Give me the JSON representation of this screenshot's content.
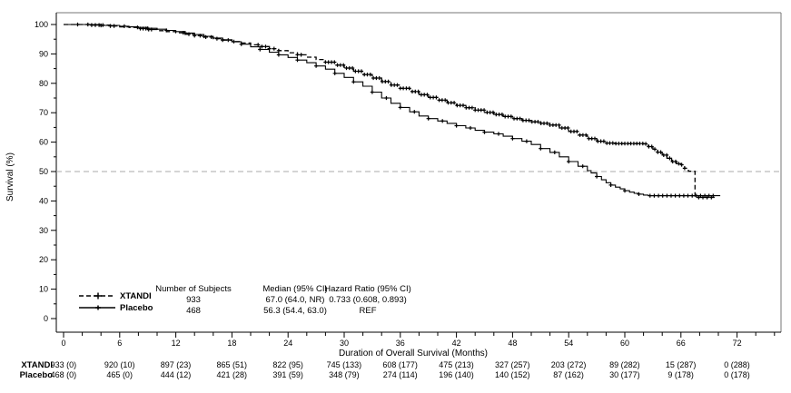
{
  "figure": {
    "bg_color": "#ffffff",
    "axis_color": "#000000",
    "frame_color": "#777777",
    "reference_line_color": "#aaaaaa",
    "series_color": "#000000"
  },
  "chart_data": {
    "type": "line",
    "subtype": "kaplan-meier-step",
    "title": "",
    "xlabel": "Duration of Overall Survival (Months)",
    "ylabel": "Survival (%)",
    "xlim": [
      0,
      76
    ],
    "ylim": [
      0,
      100
    ],
    "xticks_major": [
      0,
      6,
      12,
      18,
      24,
      30,
      36,
      42,
      48,
      54,
      60,
      66,
      72
    ],
    "xtick_minor_step": 2,
    "yticks_major": [
      0,
      10,
      20,
      30,
      40,
      50,
      60,
      70,
      80,
      90,
      100
    ],
    "ytick_minor_step": 5,
    "grid": false,
    "reference_line_y": 50,
    "legend_position": "bottom-left-inside",
    "series": [
      {
        "name": "XTANDI",
        "line_style": "dashed",
        "marker": "plus",
        "points": [
          [
            0,
            100
          ],
          [
            3,
            99.8
          ],
          [
            5,
            99.5
          ],
          [
            6,
            99.2
          ],
          [
            7,
            99.0
          ],
          [
            8,
            98.6
          ],
          [
            9,
            98.3
          ],
          [
            10,
            97.9
          ],
          [
            11,
            97.6
          ],
          [
            12,
            97.2
          ],
          [
            13,
            96.7
          ],
          [
            14,
            96.2
          ],
          [
            15,
            95.7
          ],
          [
            16,
            95.2
          ],
          [
            17,
            94.7
          ],
          [
            18,
            94.2
          ],
          [
            19,
            93.7
          ],
          [
            20,
            93.1
          ],
          [
            21,
            92.5
          ],
          [
            22,
            91.8
          ],
          [
            23,
            91.1
          ],
          [
            24,
            90.4
          ],
          [
            25,
            89.7
          ],
          [
            26,
            88.9
          ],
          [
            27,
            88.1
          ],
          [
            28,
            87.2
          ],
          [
            29,
            86.2
          ],
          [
            30,
            85.2
          ],
          [
            31,
            84.1
          ],
          [
            32,
            83.0
          ],
          [
            33,
            81.8
          ],
          [
            34,
            80.6
          ],
          [
            35,
            79.4
          ],
          [
            36,
            78.3
          ],
          [
            37,
            77.2
          ],
          [
            38,
            76.1
          ],
          [
            39,
            75.2
          ],
          [
            40,
            74.3
          ],
          [
            41,
            73.4
          ],
          [
            42,
            72.5
          ],
          [
            43,
            71.7
          ],
          [
            44,
            70.9
          ],
          [
            45,
            70.1
          ],
          [
            46,
            69.4
          ],
          [
            47,
            68.7
          ],
          [
            48,
            68.0
          ],
          [
            49,
            67.4
          ],
          [
            50,
            66.9
          ],
          [
            51,
            66.4
          ],
          [
            52,
            65.8
          ],
          [
            53,
            64.8
          ],
          [
            54,
            63.6
          ],
          [
            55,
            62.4
          ],
          [
            56,
            61.2
          ],
          [
            57,
            60.3
          ],
          [
            58,
            59.7
          ],
          [
            59,
            59.5
          ],
          [
            62,
            59.4
          ],
          [
            62.5,
            58.5
          ],
          [
            63,
            57.6
          ],
          [
            63.5,
            56.6
          ],
          [
            64,
            55.6
          ],
          [
            64.5,
            54.5
          ],
          [
            65,
            53.4
          ],
          [
            65.5,
            52.7
          ],
          [
            66,
            52.3
          ],
          [
            66.4,
            51.1
          ],
          [
            66.8,
            50.1
          ],
          [
            67.5,
            50.0
          ],
          [
            67.5,
            41.2
          ],
          [
            69.6,
            41.2
          ]
        ],
        "censor_marks": {
          "singles": [
            2.6,
            3.0,
            3.4,
            3.8,
            4.2,
            5.0,
            5.4,
            7.9,
            8.2,
            8.5,
            8.8,
            9.1,
            9.4,
            12.8,
            13.4,
            14.0,
            14.6,
            15.2,
            15.8,
            16.4,
            17.0,
            17.6,
            18.2,
            20.8,
            21.2,
            21.6,
            22.0,
            22.5,
            23.0,
            25.0,
            25.4
          ],
          "ranges": [
            {
              "from": 28,
              "to": 66.6,
              "step": 0.32
            },
            {
              "from": 67.9,
              "to": 69.4,
              "step": 0.45
            }
          ]
        }
      },
      {
        "name": "Placebo",
        "line_style": "solid",
        "marker": "plus",
        "points": [
          [
            0,
            100
          ],
          [
            4,
            99.7
          ],
          [
            6,
            99.4
          ],
          [
            7,
            99.2
          ],
          [
            8,
            99.0
          ],
          [
            9,
            98.7
          ],
          [
            10,
            98.4
          ],
          [
            11,
            98.0
          ],
          [
            12,
            97.6
          ],
          [
            13,
            97.1
          ],
          [
            14,
            96.6
          ],
          [
            15,
            96.0
          ],
          [
            16,
            95.4
          ],
          [
            17,
            94.8
          ],
          [
            18,
            94.1
          ],
          [
            19,
            93.3
          ],
          [
            20,
            92.4
          ],
          [
            21,
            91.5
          ],
          [
            22,
            90.6
          ],
          [
            23,
            89.7
          ],
          [
            24,
            88.8
          ],
          [
            25,
            87.9
          ],
          [
            26,
            87.0
          ],
          [
            27,
            85.9
          ],
          [
            28,
            84.8
          ],
          [
            29,
            83.4
          ],
          [
            30,
            82.0
          ],
          [
            31,
            80.5
          ],
          [
            32,
            79.0
          ],
          [
            33,
            77.0
          ],
          [
            34,
            75.0
          ],
          [
            35,
            73.2
          ],
          [
            36,
            71.8
          ],
          [
            37,
            70.3
          ],
          [
            38,
            68.9
          ],
          [
            39,
            68.0
          ],
          [
            40,
            67.2
          ],
          [
            41,
            66.4
          ],
          [
            42,
            65.6
          ],
          [
            43,
            64.8
          ],
          [
            44,
            64.0
          ],
          [
            45,
            63.4
          ],
          [
            46,
            62.8
          ],
          [
            47,
            62.0
          ],
          [
            48,
            61.2
          ],
          [
            49,
            60.3
          ],
          [
            50,
            59.2
          ],
          [
            51,
            57.8
          ],
          [
            52,
            56.5
          ],
          [
            53,
            55.0
          ],
          [
            54,
            53.4
          ],
          [
            55,
            51.8
          ],
          [
            56,
            50.3
          ],
          [
            56.4,
            49.5
          ],
          [
            57,
            48.3
          ],
          [
            57.5,
            47.2
          ],
          [
            58,
            46.2
          ],
          [
            58.5,
            45.4
          ],
          [
            59,
            44.7
          ],
          [
            59.5,
            44.1
          ],
          [
            60,
            43.5
          ],
          [
            60.5,
            43.0
          ],
          [
            61,
            42.6
          ],
          [
            61.5,
            42.3
          ],
          [
            62,
            42.0
          ],
          [
            62.5,
            41.8
          ],
          [
            70.2,
            41.8
          ]
        ],
        "censor_marks": {
          "singles": [
            1.5,
            4,
            6.5,
            9,
            11,
            13,
            15,
            17,
            19,
            21,
            23,
            25,
            27,
            29,
            31,
            33,
            34.5,
            36,
            37.5,
            39,
            40.5,
            42,
            43.5,
            45,
            46.5,
            48,
            49.5,
            51,
            52.5,
            54,
            55.5,
            57,
            58.5,
            60,
            61.5
          ],
          "ranges": [
            {
              "from": 62.7,
              "to": 69.8,
              "step": 0.45
            }
          ]
        }
      }
    ]
  },
  "stats_table": {
    "headers": [
      "Number of Subjects",
      "Median (95% CI)",
      "Hazard Ratio (95% CI)"
    ],
    "rows": [
      {
        "name": "XTANDI",
        "n": "933",
        "median": "67.0 (64.0, NR)",
        "hr": "0.733 (0.608, 0.893)"
      },
      {
        "name": "Placebo",
        "n": "468",
        "median": "56.3 (54.4, 63.0)",
        "hr": "REF"
      }
    ]
  },
  "at_risk": {
    "times": [
      0,
      6,
      12,
      18,
      24,
      30,
      36,
      42,
      48,
      54,
      60,
      66,
      72
    ],
    "rows": [
      {
        "label": "XTANDI",
        "values": [
          "933 (0)",
          "920 (10)",
          "897 (23)",
          "865 (51)",
          "822 (95)",
          "745 (133)",
          "608 (177)",
          "475 (213)",
          "327 (257)",
          "203 (272)",
          "89 (282)",
          "15 (287)",
          "0 (288)"
        ]
      },
      {
        "label": "Placebo",
        "values": [
          "468 (0)",
          "465 (0)",
          "444 (12)",
          "421 (28)",
          "391 (59)",
          "348 (79)",
          "274 (114)",
          "196 (140)",
          "140 (152)",
          "87 (162)",
          "30 (177)",
          "9 (178)",
          "0 (178)"
        ]
      }
    ]
  }
}
